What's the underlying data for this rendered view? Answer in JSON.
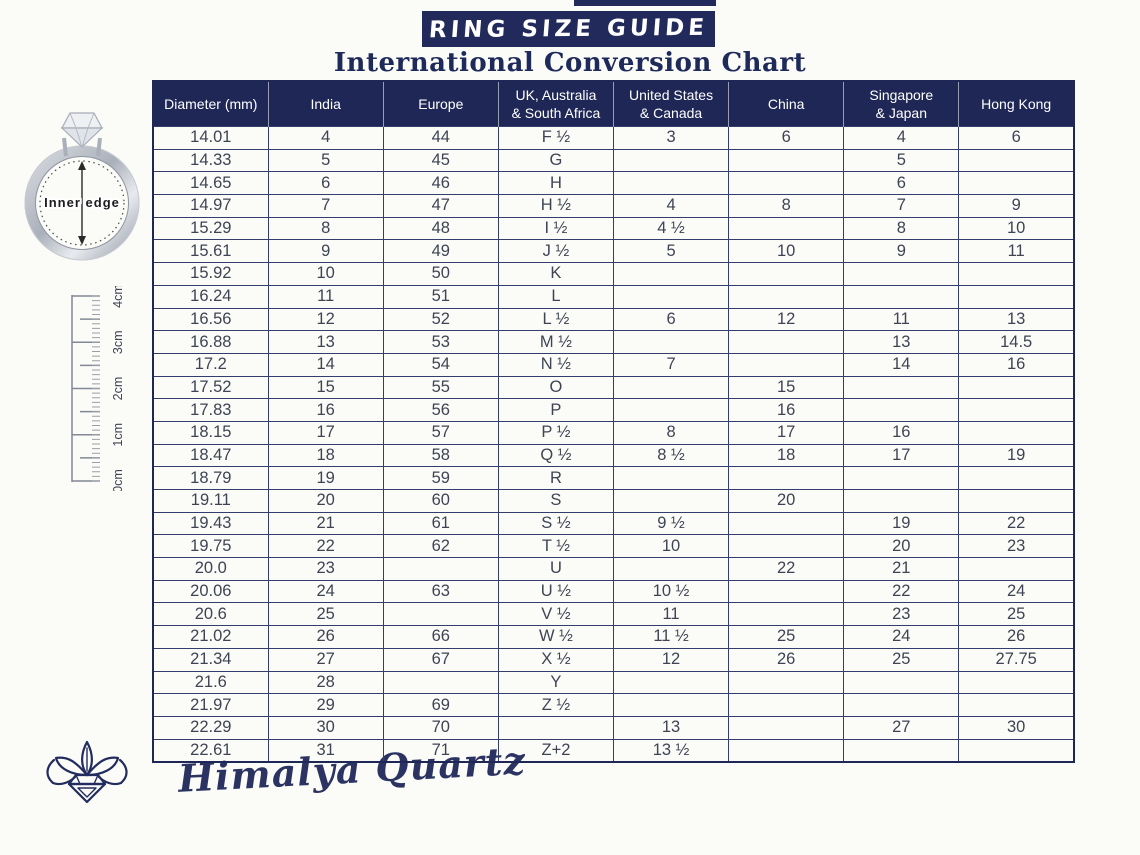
{
  "page": {
    "title": "RING SIZE GUIDE",
    "subtitle": "International Conversion Chart"
  },
  "ring_diagram": {
    "label": "Inner edge"
  },
  "ruler": {
    "labels": [
      "4cm",
      "3cm",
      "2cm",
      "1cm",
      "0cm"
    ]
  },
  "brand": {
    "signature": "Himalya Quartz"
  },
  "colors": {
    "navy": "#1e2756",
    "banner_navy": "#222a5b",
    "cell_text": "#3e4453",
    "border": "#343e6c",
    "background": "#fbfbf8"
  },
  "table": {
    "headers": [
      [
        "Diameter (mm)"
      ],
      [
        "India"
      ],
      [
        "Europe"
      ],
      [
        "UK, Australia",
        "& South Africa"
      ],
      [
        "United States",
        "& Canada"
      ],
      [
        "China"
      ],
      [
        "Singapore",
        "& Japan"
      ],
      [
        "Hong Kong"
      ]
    ],
    "rows": [
      [
        "14.01",
        "4",
        "44",
        "F ½",
        "3",
        "6",
        "4",
        "6"
      ],
      [
        "14.33",
        "5",
        "45",
        "G",
        "",
        "",
        "5",
        ""
      ],
      [
        "14.65",
        "6",
        "46",
        "H",
        "",
        "",
        "6",
        ""
      ],
      [
        "14.97",
        "7",
        "47",
        "H ½",
        "4",
        "8",
        "7",
        "9"
      ],
      [
        "15.29",
        "8",
        "48",
        "I ½",
        "4 ½",
        "",
        "8",
        "10"
      ],
      [
        "15.61",
        "9",
        "49",
        "J ½",
        "5",
        "10",
        "9",
        "11"
      ],
      [
        "15.92",
        "10",
        "50",
        "K",
        "",
        "",
        "",
        ""
      ],
      [
        "16.24",
        "11",
        "51",
        "L",
        "",
        "",
        "",
        ""
      ],
      [
        "16.56",
        "12",
        "52",
        "L ½",
        "6",
        "12",
        "11",
        "13"
      ],
      [
        "16.88",
        "13",
        "53",
        "M ½",
        "",
        "",
        "13",
        "14.5"
      ],
      [
        "17.2",
        "14",
        "54",
        "N ½",
        "7",
        "",
        "14",
        "16"
      ],
      [
        "17.52",
        "15",
        "55",
        "O",
        "",
        "15",
        "",
        ""
      ],
      [
        "17.83",
        "16",
        "56",
        "P",
        "",
        "16",
        "",
        ""
      ],
      [
        "18.15",
        "17",
        "57",
        "P ½",
        "8",
        "17",
        "16",
        ""
      ],
      [
        "18.47",
        "18",
        "58",
        "Q ½",
        "8 ½",
        "18",
        "17",
        "19"
      ],
      [
        "18.79",
        "19",
        "59",
        "R",
        "",
        "",
        "",
        ""
      ],
      [
        "19.11",
        "20",
        "60",
        "S",
        "",
        "20",
        "",
        ""
      ],
      [
        "19.43",
        "21",
        "61",
        "S ½",
        "9 ½",
        "",
        "19",
        "22"
      ],
      [
        "19.75",
        "22",
        "62",
        "T ½",
        "10",
        "",
        "20",
        "23"
      ],
      [
        "20.0",
        "23",
        "",
        "U",
        "",
        "22",
        "21",
        ""
      ],
      [
        "20.06",
        "24",
        "63",
        "U ½",
        "10 ½",
        "",
        "22",
        "24"
      ],
      [
        "20.6",
        "25",
        "",
        "V ½",
        "11",
        "",
        "23",
        "25"
      ],
      [
        "21.02",
        "26",
        "66",
        "W ½",
        "11 ½",
        "25",
        "24",
        "26"
      ],
      [
        "21.34",
        "27",
        "67",
        "X ½",
        "12",
        "26",
        "25",
        "27.75"
      ],
      [
        "21.6",
        "28",
        "",
        "Y",
        "",
        "",
        "",
        ""
      ],
      [
        "21.97",
        "29",
        "69",
        "Z ½",
        "",
        "",
        "",
        ""
      ],
      [
        "22.29",
        "30",
        "70",
        "",
        "13",
        "",
        "27",
        "30"
      ],
      [
        "22.61",
        "31",
        "71",
        "Z+2",
        "13 ½",
        "",
        "",
        ""
      ]
    ]
  }
}
